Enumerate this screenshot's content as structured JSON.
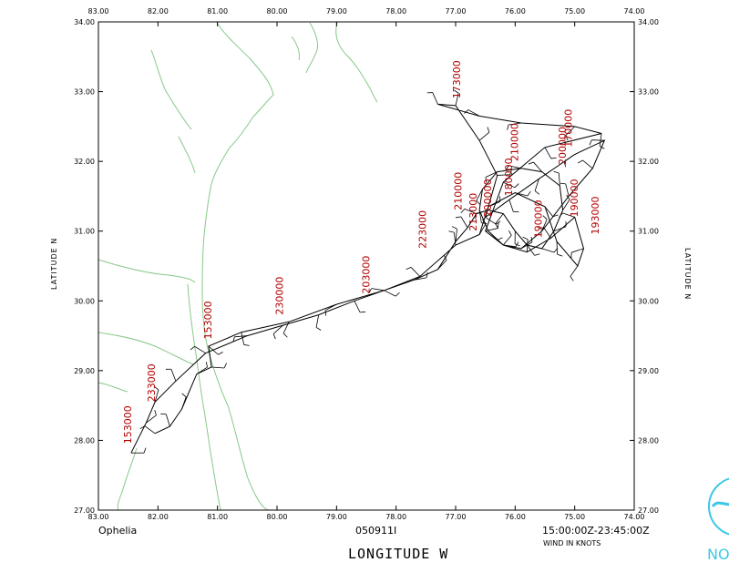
{
  "chart_data": {
    "type": "scatter",
    "title": "",
    "storm_name": "Ophelia",
    "flight_id": "050911I",
    "time_range": "15:00:00Z-23:45:00Z",
    "wind_units": "WIND IN KNOTS",
    "xlabel": "LONGITUDE   W",
    "ylabel": "LATITUDE   N",
    "xlim": [
      83.0,
      74.0
    ],
    "ylim": [
      27.0,
      34.0
    ],
    "x_ticks": [
      "83.00",
      "82.00",
      "81.00",
      "80.00",
      "79.00",
      "78.00",
      "77.00",
      "76.00",
      "75.00",
      "74.00"
    ],
    "y_ticks": [
      "27.00",
      "28.00",
      "29.00",
      "30.00",
      "31.00",
      "32.00",
      "33.00",
      "34.00"
    ],
    "grid": false,
    "coast_color": "#88c888",
    "track_color": "#000000",
    "label_color": "#b00000",
    "track": [
      [
        82.45,
        27.82
      ],
      [
        82.2,
        28.25
      ],
      [
        82.05,
        28.55
      ],
      [
        81.7,
        28.85
      ],
      [
        81.2,
        29.25
      ],
      [
        80.5,
        29.5
      ],
      [
        79.9,
        29.65
      ],
      [
        79.3,
        29.8
      ],
      [
        78.7,
        30.0
      ],
      [
        78.2,
        30.15
      ],
      [
        77.7,
        30.3
      ],
      [
        77.3,
        30.45
      ],
      [
        77.0,
        30.85
      ],
      [
        76.8,
        31.05
      ],
      [
        76.65,
        31.25
      ],
      [
        76.45,
        31.3
      ],
      [
        76.2,
        31.25
      ],
      [
        76.0,
        31.0
      ],
      [
        75.8,
        30.8
      ],
      [
        75.55,
        30.75
      ],
      [
        75.35,
        31.0
      ],
      [
        75.2,
        31.3
      ],
      [
        75.25,
        31.65
      ],
      [
        75.55,
        31.85
      ],
      [
        75.9,
        31.9
      ],
      [
        76.3,
        31.85
      ],
      [
        76.55,
        31.6
      ],
      [
        76.6,
        31.3
      ],
      [
        76.45,
        31.0
      ],
      [
        76.2,
        30.8
      ],
      [
        75.9,
        30.75
      ],
      [
        75.55,
        31.0
      ],
      [
        75.1,
        31.5
      ],
      [
        74.7,
        31.9
      ],
      [
        74.5,
        32.3
      ],
      [
        75.0,
        32.1
      ],
      [
        75.6,
        31.75
      ],
      [
        76.1,
        31.45
      ],
      [
        76.5,
        31.2
      ],
      [
        76.3,
        31.8
      ],
      [
        76.6,
        32.3
      ],
      [
        77.0,
        32.8
      ],
      [
        77.3,
        32.82
      ],
      [
        76.6,
        32.65
      ],
      [
        75.9,
        32.55
      ],
      [
        75.0,
        32.5
      ],
      [
        74.55,
        32.4
      ],
      [
        75.5,
        32.2
      ],
      [
        76.2,
        31.7
      ],
      [
        76.5,
        31.0
      ],
      [
        76.2,
        30.8
      ],
      [
        75.8,
        30.7
      ],
      [
        75.4,
        30.9
      ],
      [
        75.0,
        31.2
      ],
      [
        74.85,
        30.75
      ],
      [
        74.95,
        30.5
      ],
      [
        75.3,
        30.85
      ],
      [
        75.5,
        31.35
      ],
      [
        76.0,
        31.55
      ],
      [
        76.45,
        31.35
      ],
      [
        76.6,
        30.95
      ],
      [
        77.0,
        30.8
      ],
      [
        77.6,
        30.35
      ],
      [
        78.2,
        30.15
      ],
      [
        79.0,
        29.95
      ],
      [
        79.8,
        29.7
      ],
      [
        80.6,
        29.55
      ],
      [
        81.15,
        29.35
      ],
      [
        81.1,
        29.05
      ],
      [
        81.35,
        28.95
      ],
      [
        81.6,
        28.45
      ],
      [
        81.8,
        28.2
      ],
      [
        82.05,
        28.1
      ]
    ],
    "time_labels": [
      {
        "text": "153000",
        "x": 82.45,
        "y": 27.95
      },
      {
        "text": "233000",
        "x": 82.05,
        "y": 28.55
      },
      {
        "text": "153000",
        "x": 81.1,
        "y": 29.45
      },
      {
        "text": "230000",
        "x": 79.9,
        "y": 29.8
      },
      {
        "text": "203000",
        "x": 78.45,
        "y": 30.1
      },
      {
        "text": "223000",
        "x": 77.5,
        "y": 30.75
      },
      {
        "text": "210000",
        "x": 76.9,
        "y": 31.3
      },
      {
        "text": "173000",
        "x": 76.92,
        "y": 32.9
      },
      {
        "text": "210000",
        "x": 75.95,
        "y": 32.0
      },
      {
        "text": "180000",
        "x": 76.05,
        "y": 31.5
      },
      {
        "text": "190000",
        "x": 75.55,
        "y": 30.9
      },
      {
        "text": "170000",
        "x": 75.05,
        "y": 32.2
      },
      {
        "text": "200000",
        "x": 75.15,
        "y": 31.95
      },
      {
        "text": "190000",
        "x": 74.95,
        "y": 31.2
      },
      {
        "text": "193000",
        "x": 74.6,
        "y": 30.95
      },
      {
        "text": "213000",
        "x": 76.65,
        "y": 31.0
      },
      {
        "text": "200000",
        "x": 76.4,
        "y": 31.2
      }
    ]
  }
}
